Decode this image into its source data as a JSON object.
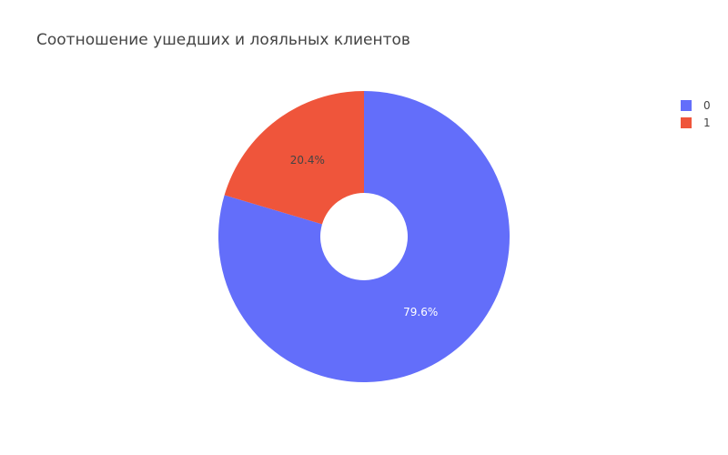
{
  "chart_data": {
    "type": "pie",
    "title": "Соотношение ушедших и лояльных клиентов",
    "hole": 0.3,
    "direction": "clockwise",
    "rotation": 90,
    "slices": [
      {
        "label": "0",
        "value": 79.6,
        "text": "79.6%",
        "color": "#636efa",
        "text_color": "#ffffff"
      },
      {
        "label": "1",
        "value": 20.4,
        "text": "20.4%",
        "color": "#ef553b",
        "text_color": "#444444"
      }
    ],
    "legend": {
      "position": "top-right",
      "entries": [
        "0",
        "1"
      ]
    }
  }
}
